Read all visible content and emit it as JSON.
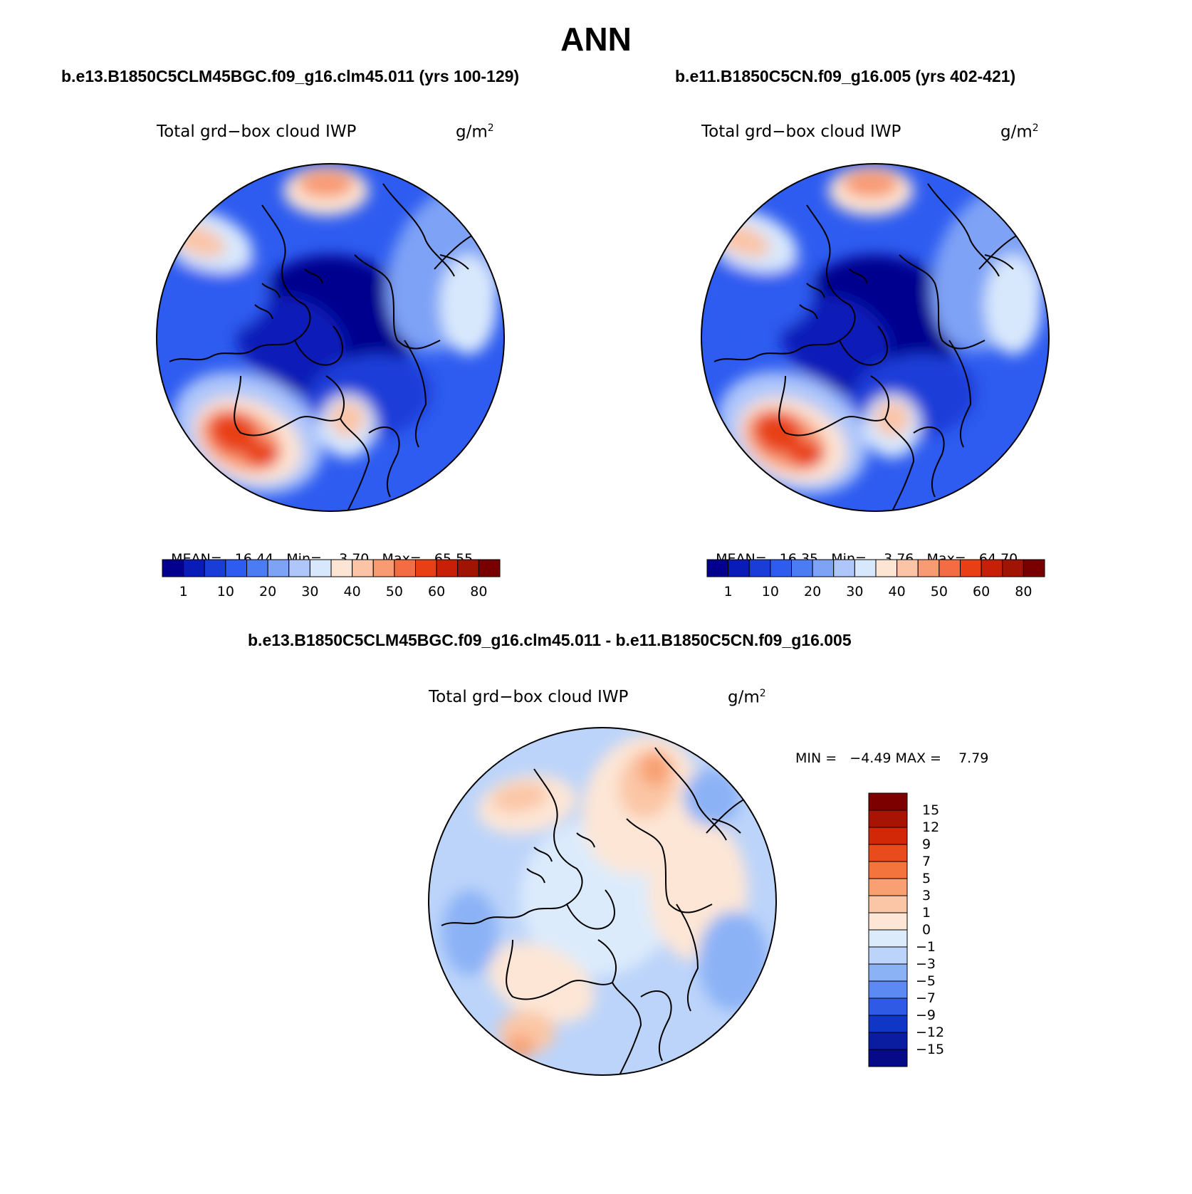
{
  "title": "ANN",
  "chart_data": [
    {
      "type": "heatmap",
      "projection": "north-polar-stereographic",
      "case_title": "b.e13.B1850C5CLM45BGC.f09_g16.clm45.011 (yrs 100-129)",
      "variable": "Total grd−box cloud IWP",
      "units_base": "g/m",
      "units_exp": "2",
      "stats": {
        "mean_label": "MEAN=",
        "mean": "16.44",
        "min_label": "Min=",
        "min": "3.70",
        "max_label": "Max=",
        "max": "65.55"
      },
      "colorbar": {
        "orientation": "horizontal",
        "colors": [
          "#04008e",
          "#0a1cb8",
          "#1a3dd8",
          "#2e5cf0",
          "#4c7cf4",
          "#7ea2f6",
          "#aec6fa",
          "#d8e8fc",
          "#fde5d4",
          "#fbc4a6",
          "#f89a72",
          "#f46c44",
          "#e84014",
          "#c82008",
          "#a01404",
          "#780000"
        ],
        "tick_labels": [
          "1",
          "10",
          "20",
          "30",
          "40",
          "50",
          "60",
          "80"
        ],
        "tick_after_box": [
          1,
          3,
          5,
          7,
          9,
          11,
          13,
          15
        ]
      }
    },
    {
      "type": "heatmap",
      "projection": "north-polar-stereographic",
      "case_title": "b.e11.B1850C5CN.f09_g16.005 (yrs 402-421)",
      "variable": "Total grd−box cloud IWP",
      "units_base": "g/m",
      "units_exp": "2",
      "stats": {
        "mean_label": "MEAN=",
        "mean": "16.35",
        "min_label": "Min=",
        "min": "3.76",
        "max_label": "Max=",
        "max": "64.70"
      },
      "colorbar": {
        "orientation": "horizontal",
        "colors": [
          "#04008e",
          "#0a1cb8",
          "#1a3dd8",
          "#2e5cf0",
          "#4c7cf4",
          "#7ea2f6",
          "#aec6fa",
          "#d8e8fc",
          "#fde5d4",
          "#fbc4a6",
          "#f89a72",
          "#f46c44",
          "#e84014",
          "#c82008",
          "#a01404",
          "#780000"
        ],
        "tick_labels": [
          "1",
          "10",
          "20",
          "30",
          "40",
          "50",
          "60",
          "80"
        ],
        "tick_after_box": [
          1,
          3,
          5,
          7,
          9,
          11,
          13,
          15
        ]
      }
    },
    {
      "type": "heatmap",
      "projection": "north-polar-stereographic",
      "case_title": "b.e13.B1850C5CLM45BGC.f09_g16.clm45.011 - b.e11.B1850C5CN.f09_g16.005",
      "variable": "Total grd−box cloud IWP",
      "units_base": "g/m",
      "units_exp": "2",
      "stats": {
        "text": "MIN =   −4.49 MAX =    7.79",
        "min": -4.49,
        "max": 7.79
      },
      "colorbar": {
        "orientation": "vertical",
        "colors_top_to_bottom": [
          "#7c0000",
          "#a81404",
          "#d22808",
          "#e84c1c",
          "#f4743e",
          "#f8a072",
          "#fbc6a6",
          "#fde6d6",
          "#dcebfc",
          "#bcd4fa",
          "#8cb2f6",
          "#5c8af2",
          "#2e5ae6",
          "#1036c6",
          "#0a1ca0",
          "#060a86"
        ],
        "tick_labels": [
          "15",
          "12",
          "9",
          "7",
          "5",
          "3",
          "1",
          "0",
          "−1",
          "−3",
          "−5",
          "−7",
          "−9",
          "−12",
          "−15"
        ]
      }
    }
  ]
}
